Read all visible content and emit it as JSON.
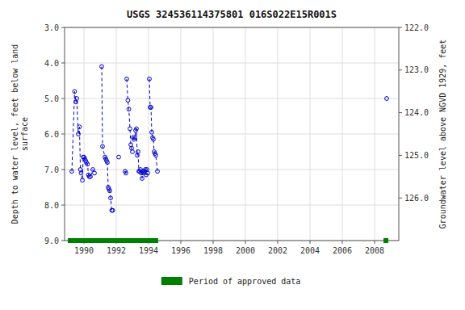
{
  "chart_data": {
    "type": "line",
    "title": "USGS 324536114375801 016S022E15R001S",
    "y_label": "Depth to water level, feet below land\n surface",
    "y2_label": "Groundwater level above NGVD 1929, feet",
    "xlim": [
      1988.8,
      2009.5
    ],
    "xticks": [
      1990,
      1992,
      1994,
      1996,
      1998,
      2000,
      2002,
      2004,
      2006,
      2008
    ],
    "ylim": [
      3.0,
      9.0
    ],
    "yticks": [
      {
        "value": 3.0,
        "label": "3.0"
      },
      {
        "value": 4.0,
        "label": "4.0"
      },
      {
        "value": 5.0,
        "label": "5.0"
      },
      {
        "value": 6.0,
        "label": "6.0"
      },
      {
        "value": 7.0,
        "label": "7.0"
      },
      {
        "value": 8.0,
        "label": "8.0"
      },
      {
        "value": 9.0,
        "label": "9.0"
      }
    ],
    "y2lim": [
      122.0,
      127.0
    ],
    "y2ticks": [
      {
        "value": 122.0,
        "label": "122.0"
      },
      {
        "value": 123.0,
        "label": "123.0"
      },
      {
        "value": 124.0,
        "label": "124.0"
      },
      {
        "value": 125.0,
        "label": "125.0"
      },
      {
        "value": 126.0,
        "label": "126.0"
      }
    ],
    "grid": true,
    "legend": "bottom",
    "series": [
      {
        "color": "#0000cc",
        "marker": "circle",
        "line_style": "dashed",
        "x": [
          1989.25,
          1989.42,
          1989.5,
          1989.55,
          1989.65,
          1989.72,
          1989.78,
          1989.82,
          1989.9,
          1989.95,
          1990.0,
          1990.05,
          1990.1,
          1990.15,
          1990.22,
          1990.28,
          1990.33,
          1990.4,
          1990.55,
          1990.65
        ],
        "values": [
          7.05,
          4.8,
          5.1,
          5.0,
          6.0,
          5.8,
          7.0,
          7.1,
          7.3,
          6.65,
          6.65,
          6.7,
          6.75,
          6.8,
          6.85,
          7.15,
          7.2,
          7.2,
          7.0,
          7.1
        ]
      },
      {
        "color": "#0000cc",
        "marker": "circle",
        "line_style": "dashed",
        "x": [
          1991.1,
          1991.15,
          1991.3,
          1991.35,
          1991.4,
          1991.45,
          1991.5,
          1991.55,
          1991.6,
          1991.65,
          1991.72,
          1991.78
        ],
        "values": [
          4.1,
          6.35,
          6.65,
          6.7,
          6.75,
          6.8,
          7.5,
          7.55,
          7.6,
          7.8,
          8.15,
          8.15
        ]
      },
      {
        "color": "#0000cc",
        "marker": "circle",
        "line_style": "dashed",
        "x": [
          1992.15
        ],
        "values": [
          6.65
        ]
      },
      {
        "color": "#0000cc",
        "marker": "circle",
        "line_style": "dashed",
        "x": [
          1992.55,
          1992.6
        ],
        "values": [
          7.05,
          7.1
        ]
      },
      {
        "color": "#0000cc",
        "marker": "circle",
        "line_style": "dashed",
        "x": [
          1992.65,
          1992.72,
          1992.78,
          1992.85,
          1992.9,
          1992.95,
          1993.0
        ],
        "values": [
          4.45,
          5.05,
          5.3,
          5.85,
          6.3,
          6.4,
          6.5
        ]
      },
      {
        "color": "#0000cc",
        "marker": "circle",
        "line_style": "dashed",
        "x": [
          1993.05,
          1993.1,
          1993.15,
          1993.2,
          1993.25,
          1993.3,
          1993.35,
          1993.4,
          1993.45,
          1993.5,
          1993.55,
          1993.6,
          1993.65,
          1993.7,
          1993.75,
          1993.8,
          1993.85,
          1993.9,
          1993.95
        ],
        "values": [
          6.1,
          6.15,
          6.1,
          5.9,
          5.85,
          6.6,
          6.5,
          7.05,
          7.05,
          7.0,
          7.1,
          7.25,
          7.05,
          7.1,
          7.05,
          7.0,
          7.15,
          7.0,
          7.1
        ]
      },
      {
        "color": "#0000cc",
        "marker": "circle",
        "line_style": "dashed",
        "x": [
          1994.05,
          1994.1,
          1994.15,
          1994.2,
          1994.25,
          1994.3,
          1994.35,
          1994.4,
          1994.45,
          1994.55
        ],
        "values": [
          4.45,
          5.25,
          5.25,
          5.95,
          6.1,
          6.15,
          6.5,
          6.55,
          6.6,
          7.05
        ]
      },
      {
        "color": "#0000cc",
        "marker": "circle",
        "line_style": "dashed",
        "x": [
          2008.75
        ],
        "values": [
          5.0
        ]
      }
    ],
    "approved_periods": {
      "label": "Period of approved data",
      "color": "#008000",
      "periods": [
        {
          "x_start": 1989.0,
          "x_end": 1994.6
        },
        {
          "x_start": 2008.55,
          "x_end": 2008.85
        }
      ]
    }
  }
}
